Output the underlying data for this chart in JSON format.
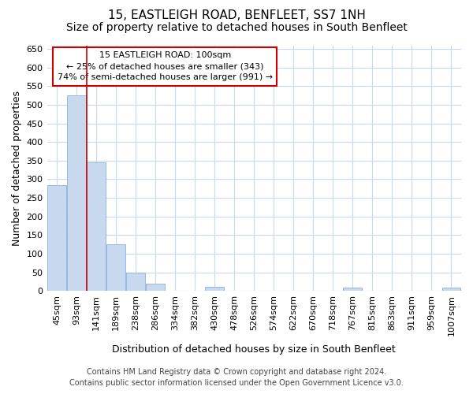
{
  "title": "15, EASTLEIGH ROAD, BENFLEET, SS7 1NH",
  "subtitle": "Size of property relative to detached houses in South Benfleet",
  "xlabel": "Distribution of detached houses by size in South Benfleet",
  "ylabel": "Number of detached properties",
  "footer_line1": "Contains HM Land Registry data © Crown copyright and database right 2024.",
  "footer_line2": "Contains public sector information licensed under the Open Government Licence v3.0.",
  "categories": [
    "45sqm",
    "93sqm",
    "141sqm",
    "189sqm",
    "238sqm",
    "286sqm",
    "334sqm",
    "382sqm",
    "430sqm",
    "478sqm",
    "526sqm",
    "574sqm",
    "622sqm",
    "670sqm",
    "718sqm",
    "767sqm",
    "815sqm",
    "863sqm",
    "911sqm",
    "959sqm",
    "1007sqm"
  ],
  "values": [
    285,
    525,
    345,
    125,
    48,
    20,
    0,
    0,
    10,
    0,
    0,
    0,
    0,
    0,
    0,
    8,
    0,
    0,
    0,
    0,
    8
  ],
  "bar_color": "#c8d8ee",
  "bar_edge_color": "#8ab0d8",
  "vline_color": "#cc0000",
  "vline_position": 1.5,
  "annotation_line1": "15 EASTLEIGH ROAD: 100sqm",
  "annotation_line2": "← 25% of detached houses are smaller (343)",
  "annotation_line3": "74% of semi-detached houses are larger (991) →",
  "annotation_box_facecolor": "white",
  "annotation_box_edgecolor": "#cc0000",
  "ylim": [
    0,
    660
  ],
  "yticks": [
    0,
    50,
    100,
    150,
    200,
    250,
    300,
    350,
    400,
    450,
    500,
    550,
    600,
    650
  ],
  "background_color": "#ffffff",
  "plot_background_color": "#ffffff",
  "grid_color": "#c8d8ee",
  "title_fontsize": 11,
  "subtitle_fontsize": 10,
  "xlabel_fontsize": 9,
  "ylabel_fontsize": 9,
  "tick_fontsize": 8,
  "footer_fontsize": 7
}
